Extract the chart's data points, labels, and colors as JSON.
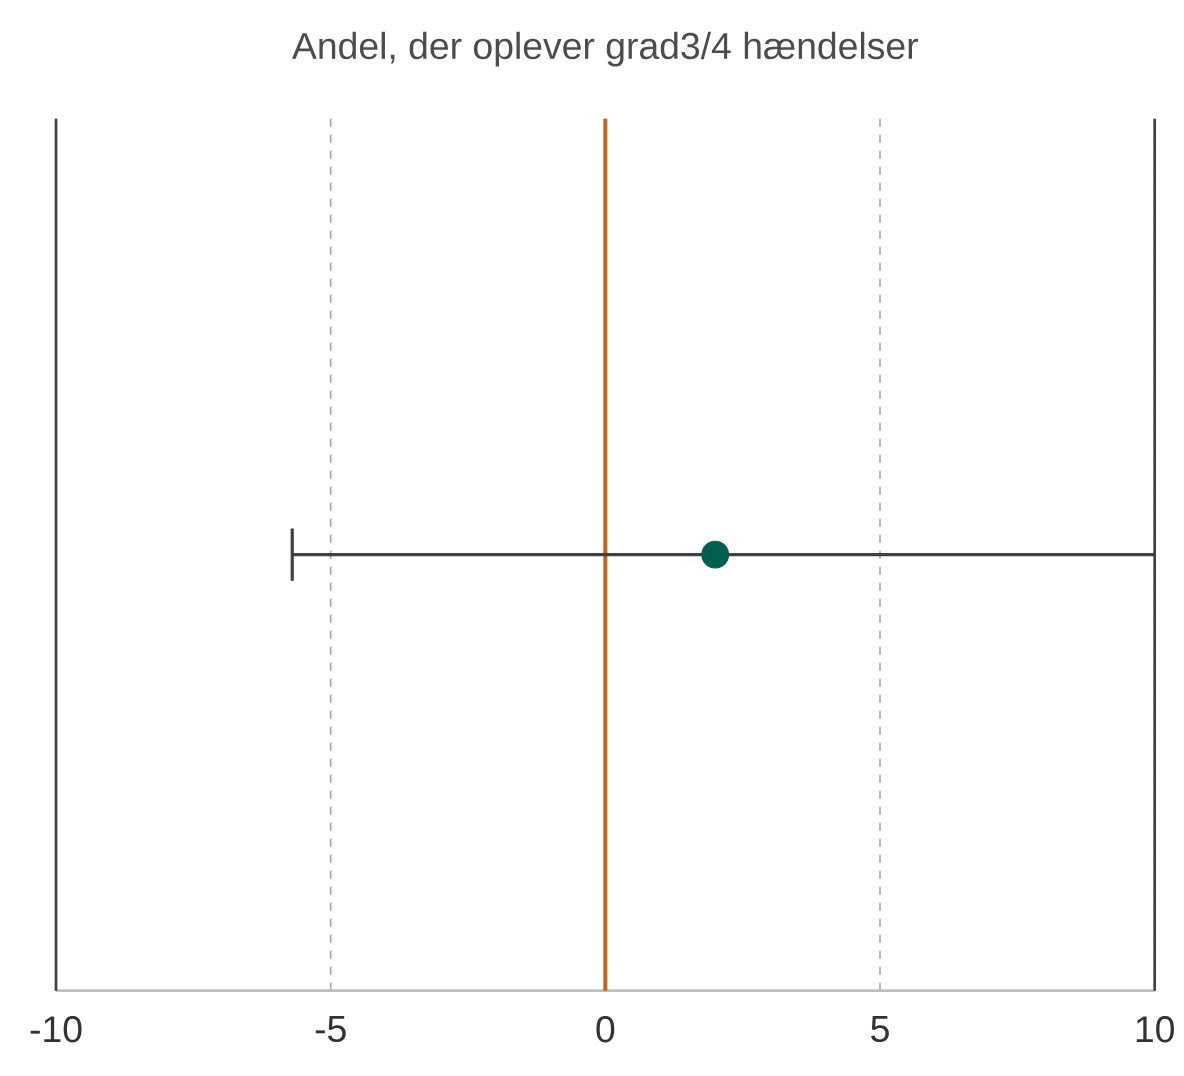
{
  "chart_data": {
    "type": "scatter",
    "title": "Andel, der oplever grad3/4 hændelser",
    "orientation": "horizontal",
    "categories": [
      null
    ],
    "values": [
      2.0
    ],
    "errors": [
      [
        -5.7,
        10
      ]
    ],
    "color": "#005f4f",
    "xlim": [
      -10,
      10
    ],
    "xticks": [
      -10,
      -5,
      0,
      5,
      10
    ],
    "grid": "x",
    "tick_labels": "x",
    "ref_lines": [
      {
        "axis": "x",
        "value": 0,
        "color": "#c0651c"
      }
    ]
  }
}
